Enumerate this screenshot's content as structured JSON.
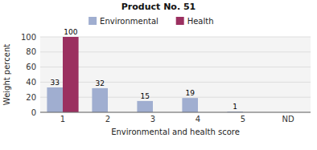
{
  "chart_data": {
    "type": "bar",
    "title": "Product No. 51",
    "x_label": "Environmental and health score",
    "y_label": "Weight percent",
    "categories": [
      "1",
      "2",
      "3",
      "4",
      "5",
      "ND"
    ],
    "series": [
      {
        "name": "Environmental",
        "color": "#a0aed0",
        "values": [
          33,
          32,
          15,
          19,
          1,
          0
        ],
        "value_labels": [
          "33",
          "32",
          "15",
          "19",
          "1",
          null
        ]
      },
      {
        "name": "Health",
        "color": "#9b3060",
        "values": [
          100,
          0,
          0,
          0,
          0,
          0
        ],
        "value_labels": [
          "100",
          null,
          null,
          null,
          null,
          null
        ]
      }
    ],
    "ylim": [
      0,
      100
    ],
    "yticks": [
      0,
      20,
      40,
      60,
      80,
      100
    ],
    "grid": true,
    "legend": "top",
    "data_labels": true
  }
}
